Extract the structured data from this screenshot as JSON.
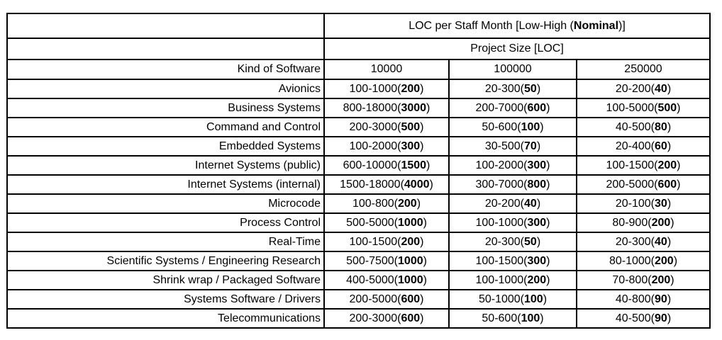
{
  "header": {
    "title_prefix": "LOC per Staff Month [Low-High (",
    "title_emph": "Nominal",
    "title_suffix": ")]",
    "subtitle": "Project Size [LOC]",
    "kind_label": "Kind of Software",
    "sizes": [
      "10000",
      "100000",
      "250000"
    ]
  },
  "rows": [
    {
      "label": "Avionics",
      "cells": [
        {
          "low": "100",
          "high": "1000",
          "nominal": "200"
        },
        {
          "low": "20",
          "high": "300",
          "nominal": "50"
        },
        {
          "low": "20",
          "high": "200",
          "nominal": "40"
        }
      ]
    },
    {
      "label": "Business Systems",
      "cells": [
        {
          "low": "800",
          "high": "18000",
          "nominal": "3000"
        },
        {
          "low": "200",
          "high": "7000",
          "nominal": "600"
        },
        {
          "low": "100",
          "high": "5000",
          "nominal": "500"
        }
      ]
    },
    {
      "label": "Command and Control",
      "cells": [
        {
          "low": "200",
          "high": "3000",
          "nominal": "500"
        },
        {
          "low": "50",
          "high": "600",
          "nominal": "100"
        },
        {
          "low": "40",
          "high": "500",
          "nominal": "80"
        }
      ]
    },
    {
      "label": "Embedded Systems",
      "cells": [
        {
          "low": "100",
          "high": "2000",
          "nominal": "300"
        },
        {
          "low": "30",
          "high": "500",
          "nominal": "70"
        },
        {
          "low": "20",
          "high": "400",
          "nominal": "60"
        }
      ]
    },
    {
      "label": "Internet Systems (public)",
      "cells": [
        {
          "low": "600",
          "high": "10000",
          "nominal": "1500"
        },
        {
          "low": "100",
          "high": "2000",
          "nominal": "300"
        },
        {
          "low": "100",
          "high": "1500",
          "nominal": "200"
        }
      ]
    },
    {
      "label": "Internet Systems (internal)",
      "cells": [
        {
          "low": "1500",
          "high": "18000",
          "nominal": "4000"
        },
        {
          "low": "300",
          "high": "7000",
          "nominal": "800"
        },
        {
          "low": "200",
          "high": "5000",
          "nominal": "600"
        }
      ]
    },
    {
      "label": "Microcode",
      "cells": [
        {
          "low": "100",
          "high": "800",
          "nominal": "200"
        },
        {
          "low": "20",
          "high": "200",
          "nominal": "40"
        },
        {
          "low": "20",
          "high": "100",
          "nominal": "30"
        }
      ]
    },
    {
      "label": "Process Control",
      "cells": [
        {
          "low": "500",
          "high": "5000",
          "nominal": "1000"
        },
        {
          "low": "100",
          "high": "1000",
          "nominal": "300"
        },
        {
          "low": "80",
          "high": "900",
          "nominal": "200"
        }
      ]
    },
    {
      "label": "Real-Time",
      "cells": [
        {
          "low": "100",
          "high": "1500",
          "nominal": "200"
        },
        {
          "low": "20",
          "high": "300",
          "nominal": "50"
        },
        {
          "low": "20",
          "high": "300",
          "nominal": "40"
        }
      ]
    },
    {
      "label": "Scientific Systems / Engineering Research",
      "cells": [
        {
          "low": "500",
          "high": "7500",
          "nominal": "1000"
        },
        {
          "low": "100",
          "high": "1500",
          "nominal": "300"
        },
        {
          "low": "80",
          "high": "1000",
          "nominal": "200"
        }
      ]
    },
    {
      "label": "Shrink wrap / Packaged Software",
      "cells": [
        {
          "low": "400",
          "high": "5000",
          "nominal": "1000"
        },
        {
          "low": "100",
          "high": "1000",
          "nominal": "200"
        },
        {
          "low": "70",
          "high": "800",
          "nominal": "200"
        }
      ]
    },
    {
      "label": "Systems Software / Drivers",
      "cells": [
        {
          "low": "200",
          "high": "5000",
          "nominal": "600"
        },
        {
          "low": "50",
          "high": "1000",
          "nominal": "100"
        },
        {
          "low": "40",
          "high": "800",
          "nominal": "90"
        }
      ]
    },
    {
      "label": "Telecommunications",
      "cells": [
        {
          "low": "200",
          "high": "3000",
          "nominal": "600"
        },
        {
          "low": "50",
          "high": "600",
          "nominal": "100"
        },
        {
          "low": "40",
          "high": "500",
          "nominal": "90"
        }
      ]
    }
  ],
  "colors": {
    "text": "#000000",
    "border": "#000000",
    "background": "#ffffff"
  }
}
